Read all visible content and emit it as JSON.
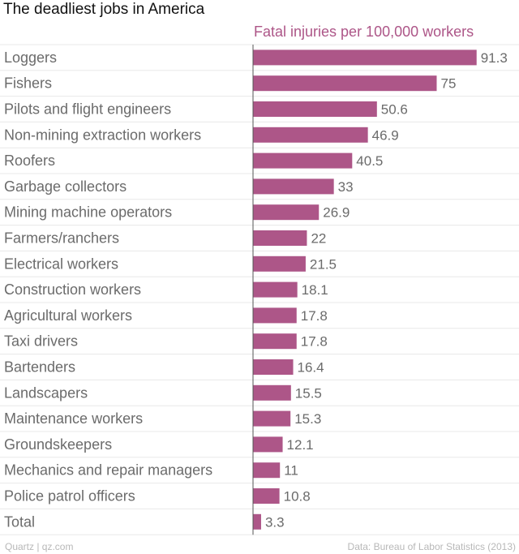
{
  "chart_data": {
    "type": "bar",
    "orientation": "horizontal",
    "title": "The deadliest jobs in America",
    "subtitle": "Fatal injuries per 100,000 workers",
    "categories": [
      "Loggers",
      "Fishers",
      "Pilots and flight engineers",
      "Non-mining extraction workers",
      "Roofers",
      "Garbage collectors",
      "Mining machine operators",
      "Farmers/ranchers",
      "Electrical workers",
      "Construction workers",
      "Agricultural workers",
      "Taxi drivers",
      "Bartenders",
      "Landscapers",
      "Maintenance workers",
      "Groundskeepers",
      "Mechanics and repair managers",
      "Police patrol officers",
      "Total"
    ],
    "values": [
      91.3,
      75,
      50.6,
      46.9,
      40.5,
      33,
      26.9,
      22,
      21.5,
      18.1,
      17.8,
      17.8,
      16.4,
      15.5,
      15.3,
      12.1,
      11,
      10.8,
      3.3
    ],
    "grid": "horizontal lines between rows",
    "colors": {
      "bar": "#ad5688",
      "subtitle": "#ad5688",
      "label": "#6b6b6b",
      "grid": "#e8e8e8",
      "axis": "#555555"
    }
  },
  "footer": {
    "source_left": "Quartz | qz.com",
    "source_right": "Data: Bureau of Labor Statistics (2013)"
  }
}
